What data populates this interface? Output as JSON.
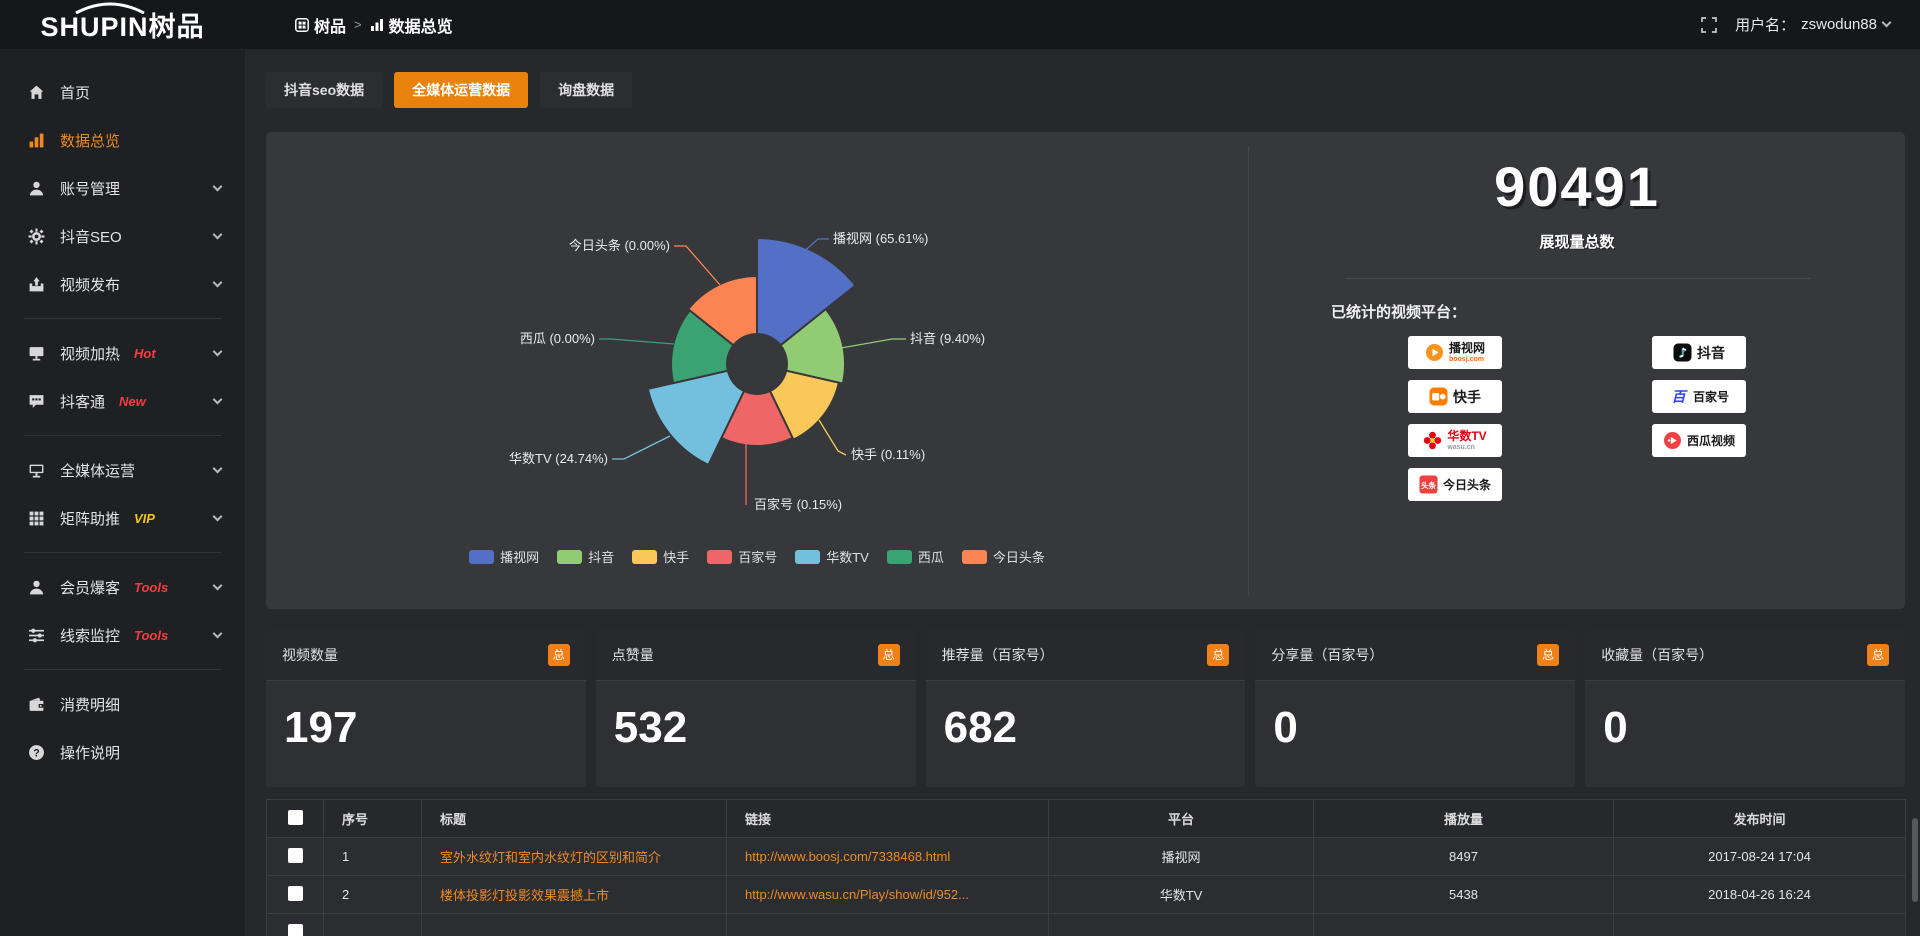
{
  "topbar": {
    "logo": "SHUPIN树品",
    "breadcrumb": {
      "root": "树品",
      "separator": ">",
      "current": "数据总览"
    },
    "user": {
      "label": "用户名：",
      "name": "zswodun88"
    }
  },
  "sidebar": {
    "items": [
      {
        "label": "首页",
        "icon": "home-icon",
        "badge": "",
        "chevron": false,
        "active": false,
        "divider_after": false
      },
      {
        "label": "数据总览",
        "icon": "chart-icon",
        "badge": "",
        "chevron": false,
        "active": true,
        "divider_after": false
      },
      {
        "label": "账号管理",
        "icon": "user-icon",
        "badge": "",
        "chevron": true,
        "active": false,
        "divider_after": false
      },
      {
        "label": "抖音SEO",
        "icon": "gear-icon",
        "badge": "",
        "chevron": true,
        "active": false,
        "divider_after": false
      },
      {
        "label": "视频发布",
        "icon": "upload-icon",
        "badge": "",
        "chevron": true,
        "active": false,
        "divider_after": true
      },
      {
        "label": "视频加热",
        "icon": "screen-icon",
        "badge": "Hot",
        "badge_color": "#f53d3d",
        "chevron": true,
        "active": false,
        "divider_after": false
      },
      {
        "label": "抖客通",
        "icon": "chat-icon",
        "badge": "New",
        "badge_color": "#f53d3d",
        "chevron": true,
        "active": false,
        "divider_after": true
      },
      {
        "label": "全媒体运营",
        "icon": "monitor-icon",
        "badge": "",
        "chevron": true,
        "active": false,
        "divider_after": false
      },
      {
        "label": "矩阵助推",
        "icon": "grid-icon",
        "badge": "VIP",
        "badge_color": "#f0c514",
        "chevron": true,
        "active": false,
        "divider_after": true
      },
      {
        "label": "会员爆客",
        "icon": "member-icon",
        "badge": "Tools",
        "badge_color": "#f53d3d",
        "chevron": true,
        "active": false,
        "divider_after": false
      },
      {
        "label": "线索监控",
        "icon": "sliders-icon",
        "badge": "Tools",
        "badge_color": "#f53d3d",
        "chevron": true,
        "active": false,
        "divider_after": true
      },
      {
        "label": "消费明细",
        "icon": "wallet-icon",
        "badge": "",
        "chevron": false,
        "active": false,
        "divider_after": false
      },
      {
        "label": "操作说明",
        "icon": "question-icon",
        "badge": "",
        "chevron": false,
        "active": false,
        "divider_after": false
      }
    ]
  },
  "tabs": [
    {
      "label": "抖音seo数据",
      "active": false
    },
    {
      "label": "全媒体运营数据",
      "active": true
    },
    {
      "label": "询盘数据",
      "active": false
    }
  ],
  "chart_data": {
    "type": "pie",
    "subtype": "rose",
    "title": "",
    "categories": [
      "播视网",
      "抖音",
      "快手",
      "百家号",
      "华数TV",
      "西瓜",
      "今日头条"
    ],
    "values": [
      65.61,
      9.4,
      0.11,
      0.15,
      24.74,
      0.0,
      0.0
    ],
    "unit": "%",
    "labels": [
      "播视网 (65.61%)",
      "抖音 (9.40%)",
      "快手 (0.11%)",
      "百家号 (0.15%)",
      "华数TV (24.74%)",
      "西瓜 (0.00%)",
      "今日头条 (0.00%)"
    ],
    "colors": [
      "#5470c6",
      "#91cc75",
      "#fac858",
      "#ee6666",
      "#73c0de",
      "#3ba272",
      "#fc8452"
    ],
    "legend": [
      "播视网",
      "抖音",
      "快手",
      "百家号",
      "华数TV",
      "西瓜",
      "今日头条"
    ],
    "legend_position": "bottom",
    "inner_radius": 30,
    "radius_hint": [
      126,
      88,
      84,
      82,
      112,
      86,
      88
    ]
  },
  "summary": {
    "total_value": "90491",
    "total_label": "展现量总数",
    "platforms_title": "已统计的视频平台：",
    "badges_left": [
      {
        "name": "播视网",
        "sub": "boosj.com",
        "icon": "boosj-logo",
        "style": ""
      },
      {
        "name": "快手",
        "sub": "",
        "icon": "kuaishou-logo",
        "style": "big"
      },
      {
        "name": "华数TV",
        "sub": "wasu.cn",
        "icon": "wasu-logo",
        "style": "red"
      },
      {
        "name": "今日头条",
        "sub": "",
        "icon": "toutiao-logo",
        "style": ""
      }
    ],
    "badges_right": [
      {
        "name": "抖音",
        "sub": "",
        "icon": "douyin-logo",
        "style": "big"
      },
      {
        "name": "百家号",
        "sub": "",
        "icon": "baijiahao-logo",
        "style": ""
      },
      {
        "name": "西瓜视频",
        "sub": "",
        "icon": "xigua-logo",
        "style": ""
      }
    ]
  },
  "stat_cards": [
    {
      "label": "视频数量",
      "badge": "总",
      "value": "197"
    },
    {
      "label": "点赞量",
      "badge": "总",
      "value": "532"
    },
    {
      "label": "推荐量（百家号）",
      "badge": "总",
      "value": "682"
    },
    {
      "label": "分享量（百家号）",
      "badge": "总",
      "value": "0"
    },
    {
      "label": "收藏量（百家号）",
      "badge": "总",
      "value": "0"
    }
  ],
  "table": {
    "headers": [
      "序号",
      "标题",
      "链接",
      "平台",
      "播放量",
      "发布时间"
    ],
    "rows": [
      {
        "index": "1",
        "title": "室外水纹灯和室内水纹灯的区别和简介",
        "link": "http://www.boosj.com/7338468.html",
        "platform": "播视网",
        "views": "8497",
        "time": "2017-08-24 17:04"
      },
      {
        "index": "2",
        "title": "楼体投影灯投影效果震撼上市",
        "link": "http://www.wasu.cn/Play/show/id/952...",
        "platform": "华数TV",
        "views": "5438",
        "time": "2018-04-26 16:24"
      }
    ]
  },
  "colors": {
    "accent": "#f08a1e",
    "tab_active": "#e8820c",
    "link": "#ef8b22",
    "badge_bg": "#f08018"
  }
}
